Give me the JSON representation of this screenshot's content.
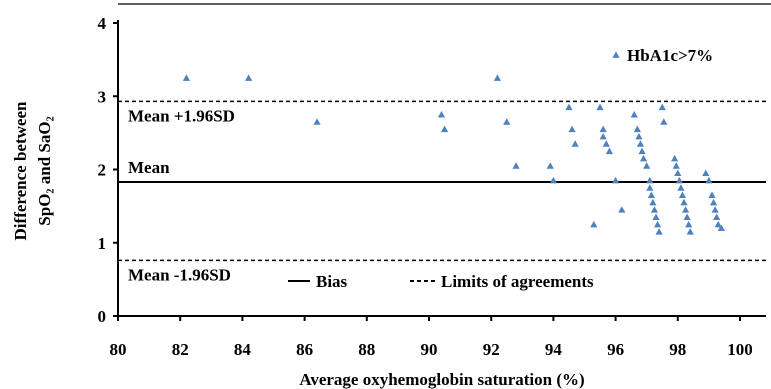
{
  "chart_data": {
    "type": "scatter",
    "xlabel": "Average  oxyhemoglobin saturation (%)",
    "ylabel_line1": "Difference between",
    "ylabel_line2": "SpO₂ and SaO₂",
    "xlim": [
      80,
      100
    ],
    "ylim": [
      0,
      4
    ],
    "x_ticks": [
      "80",
      "82",
      "84",
      "86",
      "88",
      "90",
      "92",
      "94",
      "96",
      "98",
      "100"
    ],
    "y_ticks": [
      "0",
      "1",
      "2",
      "3",
      "4"
    ],
    "grid": false,
    "marker_color": "#4f81bd",
    "series": [
      {
        "name": "HbA1c>7%",
        "x": [
          82.2,
          84.2,
          86.4,
          90.4,
          90.5,
          92.2,
          92.5,
          92.8,
          93.9,
          94.0,
          94.5,
          94.6,
          94.7,
          95.3,
          95.5,
          95.6,
          95.6,
          95.7,
          95.8,
          96.0,
          96.2,
          96.6,
          96.7,
          96.75,
          96.8,
          96.85,
          96.9,
          97.0,
          97.1,
          97.1,
          97.15,
          97.2,
          97.25,
          97.3,
          97.35,
          97.4,
          97.5,
          97.55,
          97.9,
          97.95,
          98.0,
          98.05,
          98.1,
          98.15,
          98.2,
          98.25,
          98.3,
          98.35,
          98.4,
          98.9,
          99.0,
          99.1,
          99.15,
          99.2,
          99.25,
          99.3,
          99.4
        ],
        "y": [
          3.25,
          3.25,
          2.65,
          2.75,
          2.55,
          3.25,
          2.65,
          2.05,
          2.05,
          1.85,
          2.85,
          2.55,
          2.35,
          1.25,
          2.85,
          2.55,
          2.45,
          2.35,
          2.25,
          1.85,
          1.45,
          2.75,
          2.55,
          2.45,
          2.35,
          2.25,
          2.15,
          2.05,
          1.85,
          1.75,
          1.65,
          1.55,
          1.45,
          1.35,
          1.25,
          1.15,
          2.85,
          2.65,
          2.15,
          2.05,
          1.95,
          1.85,
          1.75,
          1.65,
          1.55,
          1.45,
          1.35,
          1.25,
          1.15,
          1.95,
          1.85,
          1.65,
          1.55,
          1.45,
          1.35,
          1.25,
          1.2
        ]
      }
    ],
    "reference_lines": [
      {
        "label": "Mean +1.96SD",
        "y": 2.93,
        "style": "dashed"
      },
      {
        "label": "Mean",
        "y": 1.83,
        "style": "solid"
      },
      {
        "label": "Mean -1.96SD",
        "y": 0.76,
        "style": "dashed"
      }
    ],
    "legend": {
      "series_label": "HbA1c>7%",
      "series_placement": "top-right",
      "items": [
        {
          "label": "Bias",
          "style": "solid"
        },
        {
          "label": "Limits of agreements",
          "style": "dashed"
        }
      ],
      "items_placement": "bottom-center"
    }
  }
}
